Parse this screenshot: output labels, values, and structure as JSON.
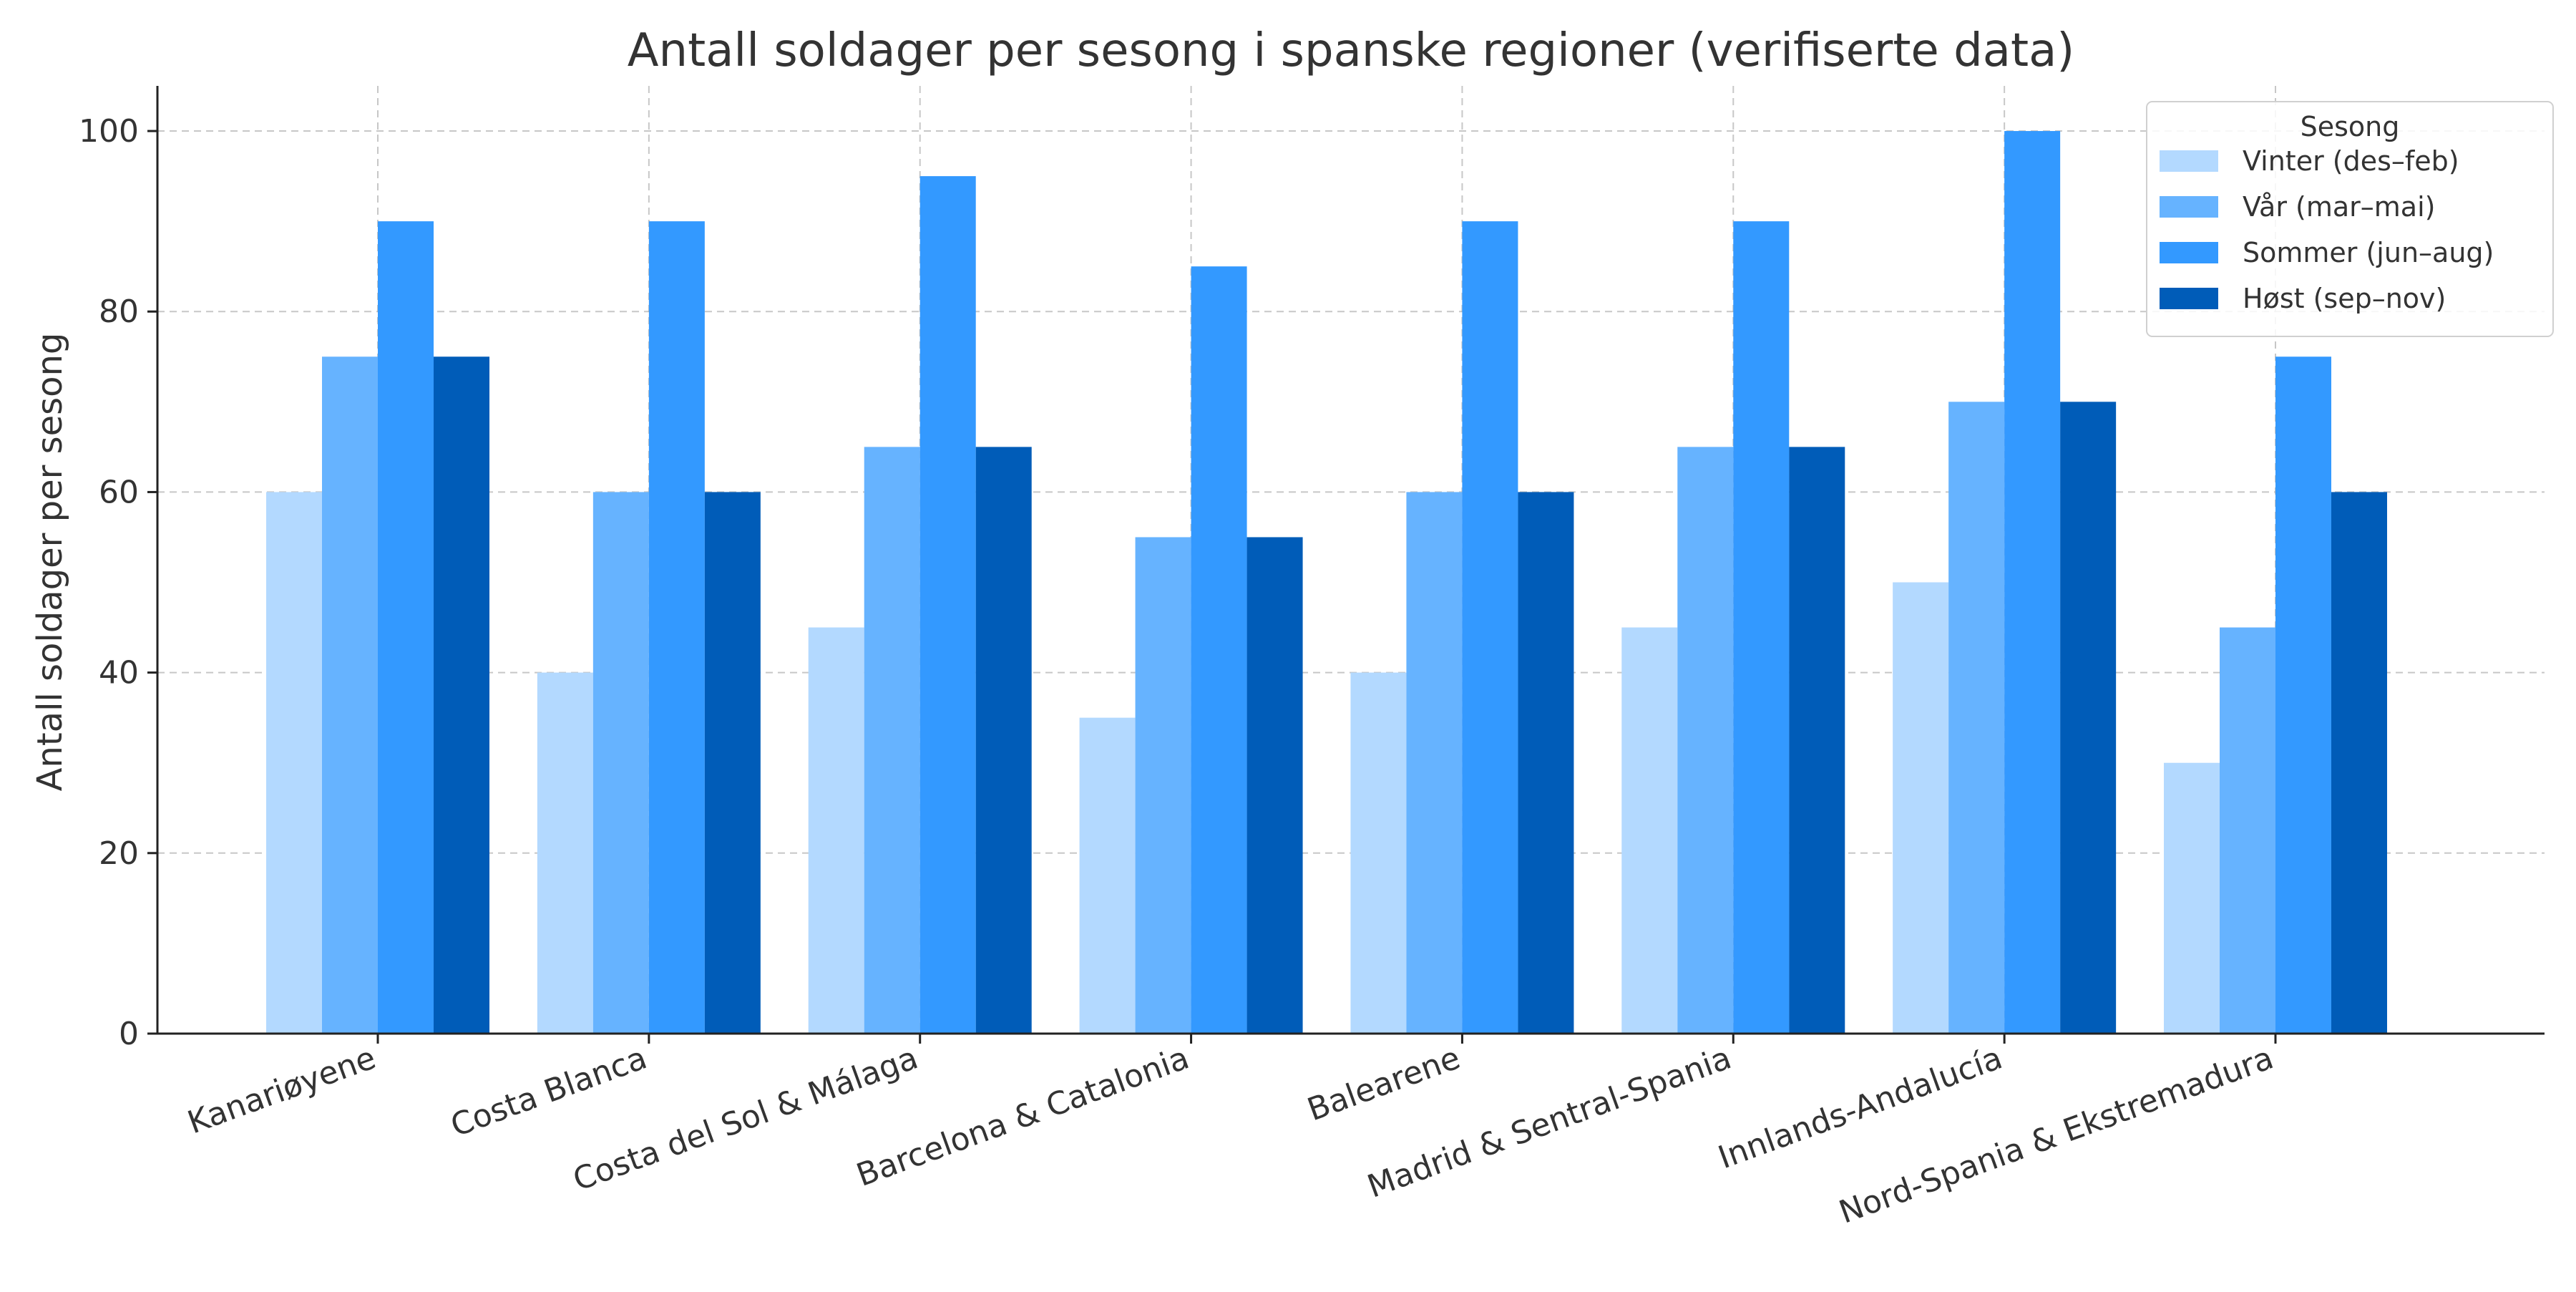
{
  "chart_data": {
    "type": "bar",
    "title": "Antall soldager per sesong i spanske regioner (verifiserte data)",
    "xlabel": "",
    "ylabel": "Antall soldager per sesong",
    "ylim": [
      0,
      105
    ],
    "yticks": [
      0,
      20,
      40,
      60,
      80,
      100
    ],
    "grid": true,
    "legend": {
      "title": "Sesong",
      "placement": "top-right"
    },
    "categories": [
      "Kanariøyene",
      "Costa Blanca",
      "Costa del Sol & Málaga",
      "Barcelona & Catalonia",
      "Balearene",
      "Madrid & Sentral-Spania",
      "Innlands-Andalucía",
      "Nord-Spania & Ekstremadura"
    ],
    "series": [
      {
        "name": "Vinter (des–feb)",
        "color": "#b3d9ff",
        "values": [
          60,
          40,
          45,
          35,
          40,
          45,
          50,
          30
        ]
      },
      {
        "name": "Vår (mar–mai)",
        "color": "#66b3ff",
        "values": [
          75,
          60,
          65,
          55,
          60,
          65,
          70,
          45
        ]
      },
      {
        "name": "Sommer (jun–aug)",
        "color": "#3399ff",
        "values": [
          90,
          90,
          95,
          85,
          90,
          90,
          100,
          75
        ]
      },
      {
        "name": "Høst (sep–nov)",
        "color": "#005cb8",
        "values": [
          75,
          60,
          65,
          55,
          60,
          65,
          70,
          60
        ]
      }
    ]
  }
}
